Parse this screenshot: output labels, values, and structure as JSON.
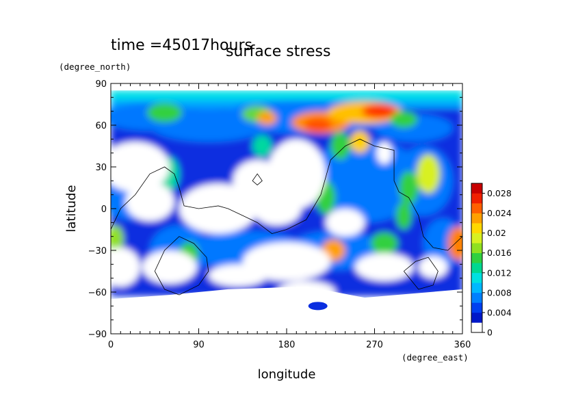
{
  "chart_data": {
    "type": "heatmap",
    "title": "surface stress",
    "time_label": "time =45017hours",
    "xlabel": "longitude",
    "ylabel": "latitude",
    "x_unit": "(degree_east)",
    "y_unit": "(degree_north)",
    "xlim": [
      0,
      360
    ],
    "ylim": [
      -90,
      90
    ],
    "x_ticks": [
      "0",
      "90",
      "180",
      "270",
      "360"
    ],
    "y_ticks": [
      "90",
      "60",
      "30",
      "0",
      "−30",
      "−60",
      "−90"
    ],
    "x_tick_values": [
      0,
      90,
      180,
      270,
      360
    ],
    "y_tick_values": [
      90,
      60,
      30,
      0,
      -30,
      -60,
      -90
    ],
    "colorbar": {
      "ticks": [
        "0.028",
        "0.024",
        "0.02",
        "0.016",
        "0.012",
        "0.008",
        "0.004",
        "0"
      ],
      "tick_values": [
        0.028,
        0.024,
        0.02,
        0.016,
        0.012,
        0.008,
        0.004,
        0
      ],
      "range": [
        0,
        0.03
      ],
      "colors": [
        "#ffffff",
        "#0018c8",
        "#0040f0",
        "#0080ff",
        "#00b8ff",
        "#00e0e0",
        "#00d890",
        "#30d040",
        "#90e020",
        "#d8f020",
        "#ffd800",
        "#ffa000",
        "#ff6000",
        "#f02000",
        "#c80000"
      ]
    },
    "data_extent_lat": [
      -75,
      85
    ],
    "grid": false,
    "legend_position": "right"
  }
}
